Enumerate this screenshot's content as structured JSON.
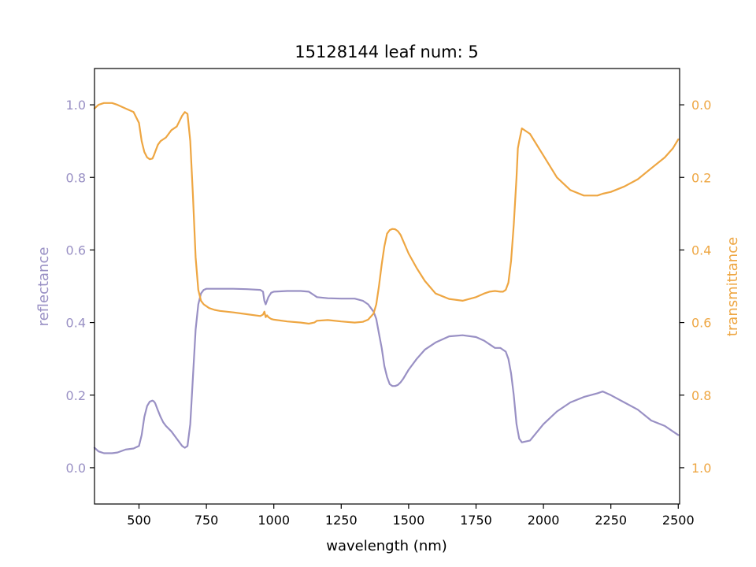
{
  "chart_data": {
    "type": "line",
    "title": "15128144 leaf num: 5",
    "xlabel": "wavelength (nm)",
    "ylabel_left": "reflectance",
    "ylabel_right": "transmittance",
    "xlim": [
      335,
      2505
    ],
    "ylim_left": [
      -0.1,
      1.1
    ],
    "ylim_right": [
      1.1,
      -0.1
    ],
    "right_axis_inverted": true,
    "grid": false,
    "x_ticks": [
      500,
      750,
      1000,
      1250,
      1500,
      1750,
      2000,
      2250,
      2500
    ],
    "x_tick_labels": [
      "500",
      "750",
      "1000",
      "1250",
      "1500",
      "1750",
      "2000",
      "2250",
      "2500"
    ],
    "y_left_ticks": [
      0.0,
      0.2,
      0.4,
      0.6,
      0.8,
      1.0
    ],
    "y_left_tick_labels": [
      "0.0",
      "0.2",
      "0.4",
      "0.6",
      "0.8",
      "1.0"
    ],
    "y_right_ticks": [
      0.0,
      0.2,
      0.4,
      0.6,
      0.8,
      1.0
    ],
    "y_right_tick_labels": [
      "0.0",
      "0.2",
      "0.4",
      "0.6",
      "0.8",
      "1.0"
    ],
    "colors": {
      "reflectance": "#9990c4",
      "transmittance": "#eea642",
      "axes": "#000000",
      "background": "#ffffff"
    },
    "series": [
      {
        "axis": "left",
        "color": "#9990c4",
        "x": [
          335,
          350,
          370,
          400,
          420,
          450,
          480,
          500,
          510,
          520,
          530,
          540,
          550,
          555,
          560,
          570,
          580,
          590,
          600,
          620,
          640,
          660,
          670,
          680,
          690,
          700,
          710,
          720,
          730,
          740,
          750,
          760,
          780,
          800,
          850,
          900,
          950,
          960,
          965,
          970,
          975,
          980,
          990,
          1000,
          1050,
          1100,
          1130,
          1150,
          1160,
          1200,
          1250,
          1300,
          1330,
          1350,
          1370,
          1380,
          1390,
          1400,
          1410,
          1420,
          1430,
          1440,
          1450,
          1460,
          1470,
          1480,
          1500,
          1530,
          1560,
          1600,
          1650,
          1700,
          1750,
          1780,
          1800,
          1820,
          1840,
          1850,
          1860,
          1870,
          1880,
          1890,
          1900,
          1905,
          1910,
          1920,
          1950,
          2000,
          2050,
          2100,
          2150,
          2200,
          2220,
          2250,
          2300,
          2350,
          2400,
          2450,
          2480,
          2500
        ],
        "values": [
          0.055,
          0.045,
          0.04,
          0.04,
          0.042,
          0.05,
          0.053,
          0.06,
          0.09,
          0.14,
          0.17,
          0.182,
          0.185,
          0.183,
          0.178,
          0.158,
          0.14,
          0.125,
          0.115,
          0.1,
          0.08,
          0.06,
          0.055,
          0.06,
          0.12,
          0.25,
          0.38,
          0.45,
          0.48,
          0.49,
          0.493,
          0.493,
          0.493,
          0.493,
          0.493,
          0.492,
          0.49,
          0.485,
          0.46,
          0.45,
          0.46,
          0.47,
          0.482,
          0.485,
          0.487,
          0.487,
          0.485,
          0.475,
          0.47,
          0.467,
          0.466,
          0.466,
          0.46,
          0.45,
          0.43,
          0.41,
          0.37,
          0.33,
          0.28,
          0.25,
          0.23,
          0.225,
          0.225,
          0.228,
          0.235,
          0.245,
          0.27,
          0.3,
          0.325,
          0.345,
          0.362,
          0.365,
          0.36,
          0.35,
          0.34,
          0.33,
          0.33,
          0.325,
          0.32,
          0.3,
          0.26,
          0.2,
          0.12,
          0.1,
          0.08,
          0.07,
          0.075,
          0.12,
          0.155,
          0.18,
          0.195,
          0.205,
          0.21,
          0.2,
          0.18,
          0.16,
          0.13,
          0.115,
          0.1,
          0.09
        ]
      },
      {
        "axis": "right",
        "color": "#eea642",
        "x": [
          335,
          350,
          370,
          400,
          420,
          450,
          480,
          500,
          510,
          520,
          530,
          540,
          550,
          555,
          560,
          570,
          580,
          590,
          600,
          620,
          640,
          660,
          670,
          680,
          690,
          700,
          710,
          720,
          730,
          740,
          750,
          760,
          780,
          800,
          850,
          900,
          950,
          960,
          965,
          970,
          975,
          980,
          990,
          1000,
          1050,
          1100,
          1130,
          1150,
          1160,
          1200,
          1250,
          1300,
          1330,
          1350,
          1370,
          1380,
          1390,
          1400,
          1410,
          1420,
          1430,
          1440,
          1450,
          1460,
          1470,
          1480,
          1500,
          1530,
          1560,
          1600,
          1650,
          1700,
          1750,
          1780,
          1800,
          1820,
          1840,
          1850,
          1860,
          1870,
          1880,
          1890,
          1900,
          1905,
          1910,
          1920,
          1950,
          2000,
          2050,
          2100,
          2150,
          2200,
          2220,
          2250,
          2300,
          2350,
          2400,
          2450,
          2480,
          2500
        ],
        "values": [
          0.01,
          0.0,
          -0.005,
          -0.005,
          0.0,
          0.01,
          0.02,
          0.05,
          0.1,
          0.13,
          0.145,
          0.15,
          0.148,
          0.14,
          0.13,
          0.11,
          0.1,
          0.095,
          0.09,
          0.07,
          0.06,
          0.03,
          0.02,
          0.025,
          0.1,
          0.25,
          0.42,
          0.51,
          0.54,
          0.55,
          0.555,
          0.56,
          0.565,
          0.568,
          0.572,
          0.577,
          0.582,
          0.578,
          0.57,
          0.585,
          0.58,
          0.585,
          0.59,
          0.592,
          0.597,
          0.6,
          0.603,
          0.6,
          0.595,
          0.593,
          0.597,
          0.6,
          0.598,
          0.592,
          0.575,
          0.55,
          0.5,
          0.44,
          0.39,
          0.355,
          0.345,
          0.342,
          0.343,
          0.348,
          0.358,
          0.375,
          0.41,
          0.45,
          0.485,
          0.52,
          0.535,
          0.54,
          0.53,
          0.52,
          0.515,
          0.513,
          0.515,
          0.515,
          0.51,
          0.49,
          0.43,
          0.33,
          0.2,
          0.12,
          0.1,
          0.065,
          0.08,
          0.14,
          0.2,
          0.235,
          0.25,
          0.25,
          0.245,
          0.24,
          0.225,
          0.205,
          0.175,
          0.145,
          0.12,
          0.095
        ]
      }
    ]
  }
}
